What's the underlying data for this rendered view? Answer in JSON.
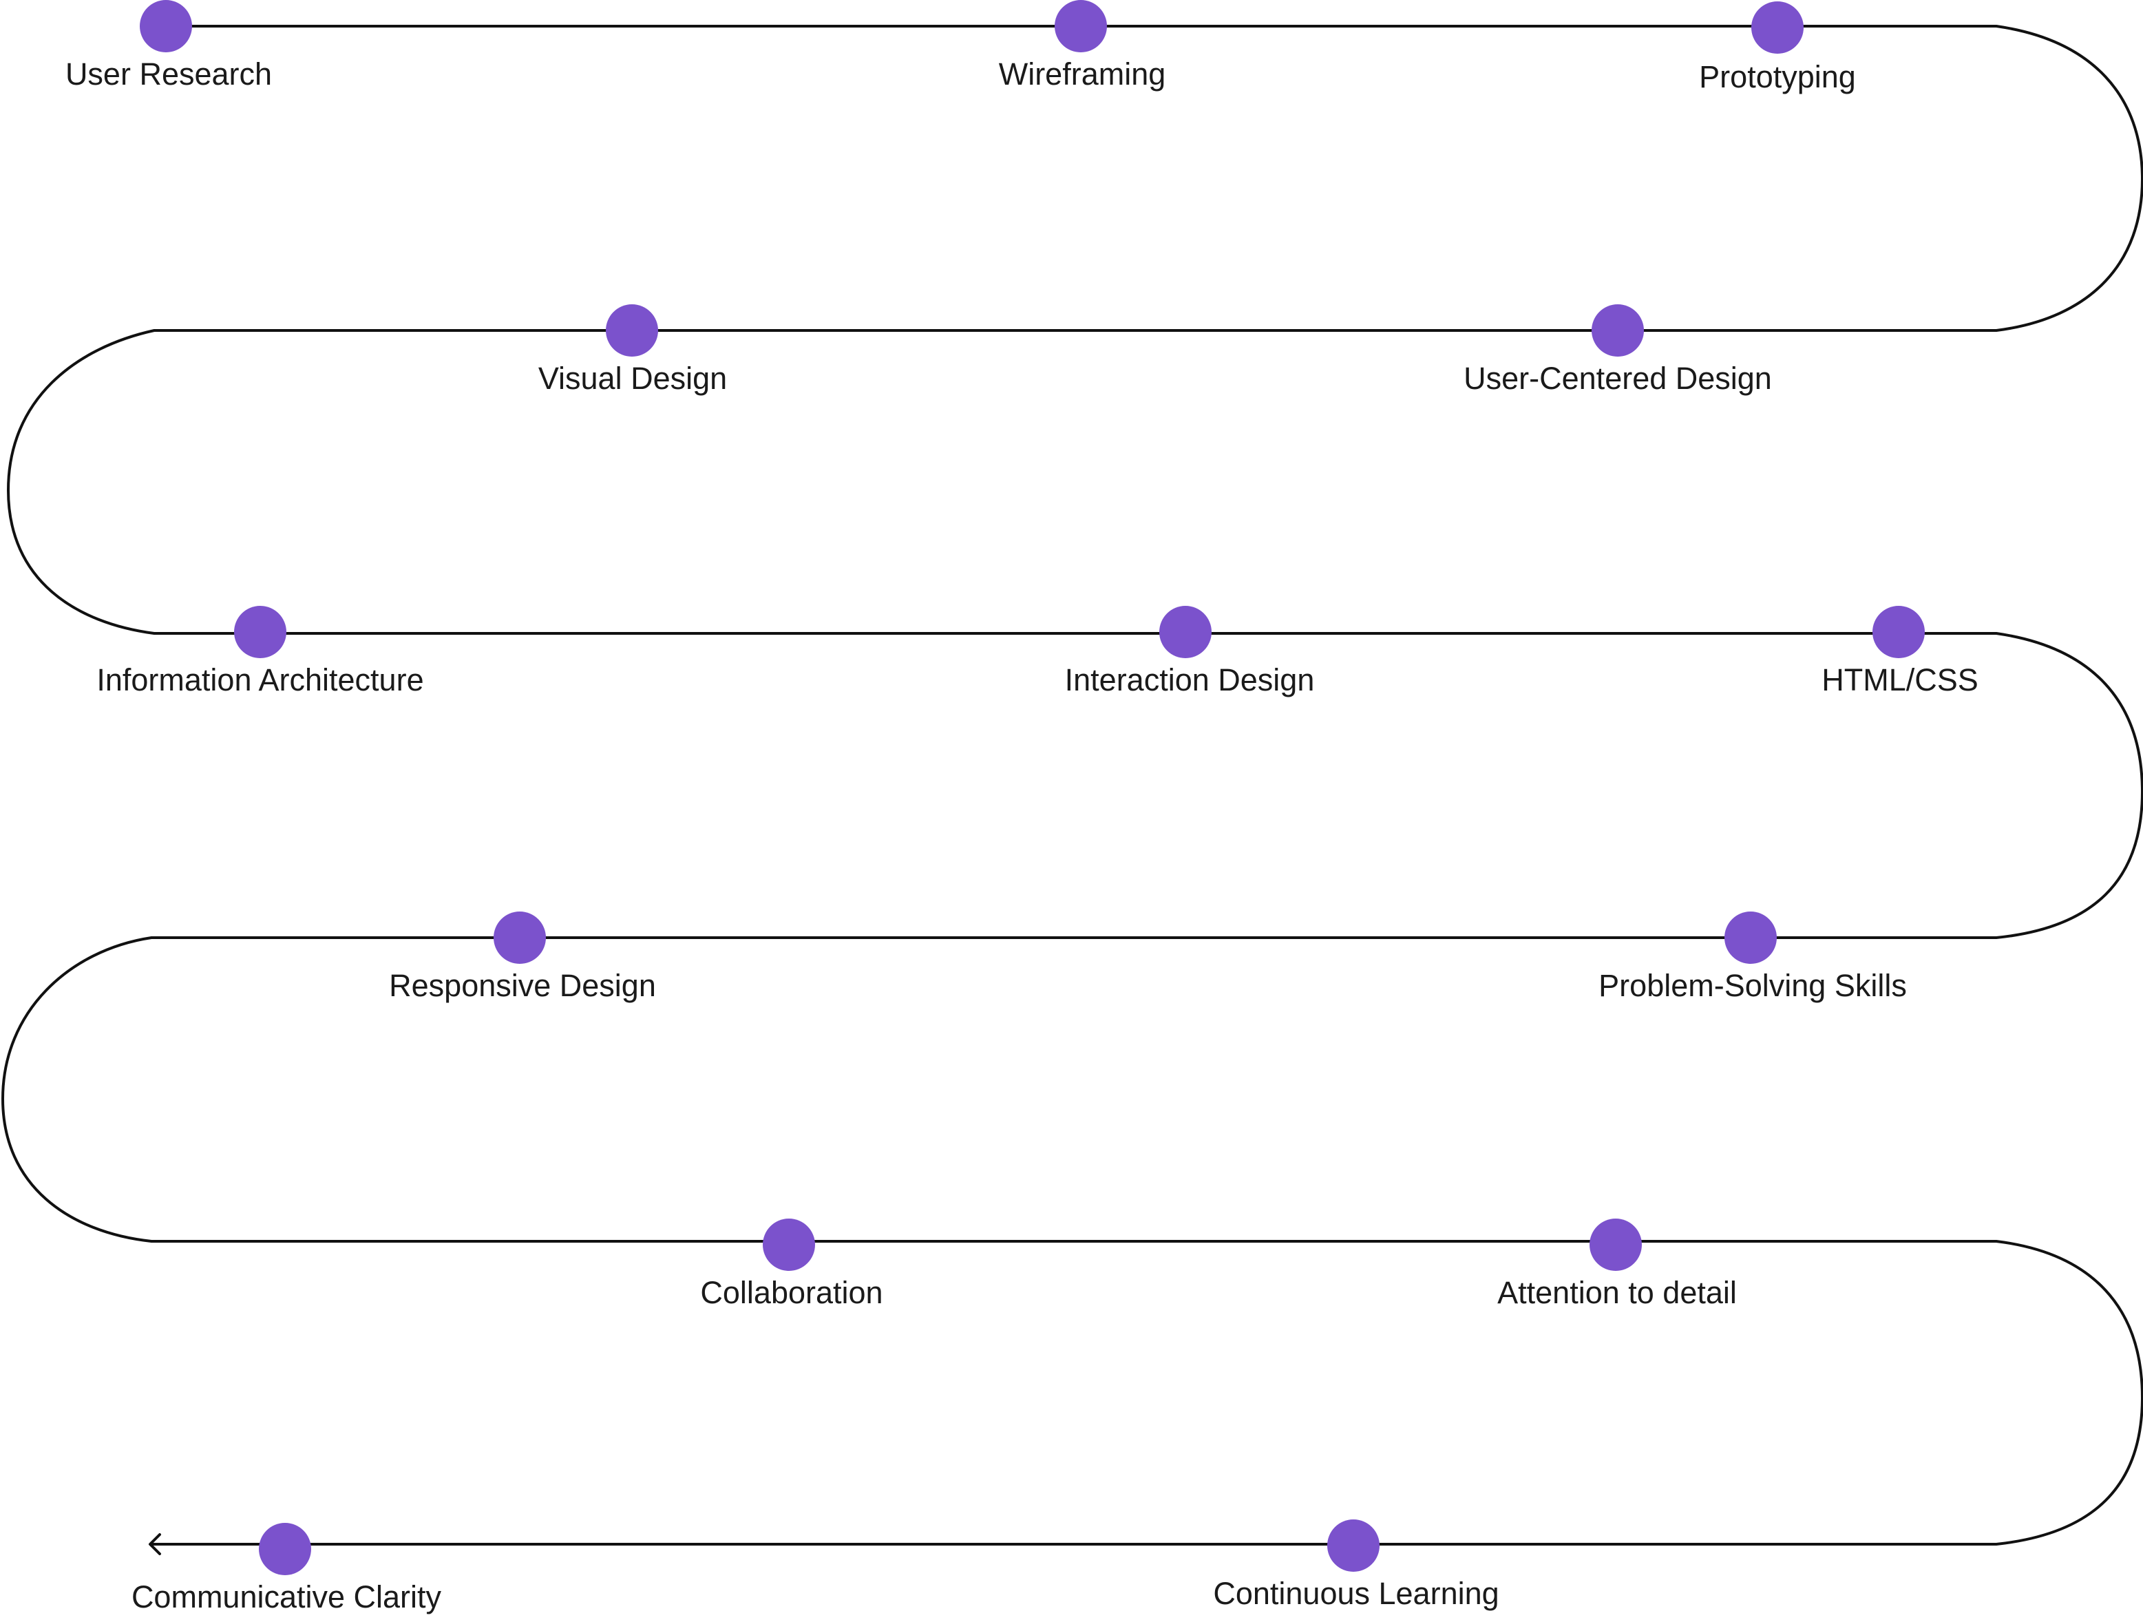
{
  "colors": {
    "dot": "#7b52cc",
    "path": "#111111",
    "label": "#1a1a1a",
    "background": "#ffffff"
  },
  "milestones": [
    {
      "label": "User Research"
    },
    {
      "label": "Wireframing"
    },
    {
      "label": "Prototyping"
    },
    {
      "label": "Visual Design"
    },
    {
      "label": "User-Centered Design"
    },
    {
      "label": "Information Architecture"
    },
    {
      "label": "Interaction Design"
    },
    {
      "label": "HTML/CSS"
    },
    {
      "label": "Responsive Design"
    },
    {
      "label": "Problem-Solving Skills"
    },
    {
      "label": "Collaboration"
    },
    {
      "label": "Attention to detail"
    },
    {
      "label": "Communicative Clarity"
    },
    {
      "label": "Continuous Learning"
    }
  ],
  "path_end": {
    "icon": "arrow-left-icon"
  }
}
